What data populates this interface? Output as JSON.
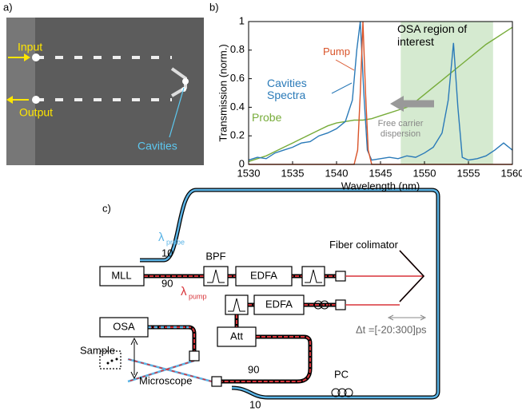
{
  "panel_labels": [
    "a)",
    "b)",
    "c)"
  ],
  "image_panel": {
    "labels": {
      "input": "Input",
      "output": "Output",
      "cavities": "Cavities"
    }
  },
  "chart_data": {
    "type": "line",
    "xlabel": "Wavelength (nm)",
    "ylabel": "Transmission (norm.)",
    "xlim": [
      1530,
      1560
    ],
    "xticks": [
      1530,
      1535,
      1540,
      1545,
      1550,
      1555,
      1560
    ],
    "ylim": [
      0,
      1
    ],
    "yticks": [
      0,
      0.2,
      0.4,
      0.6,
      0.8,
      1
    ],
    "shaded_region": {
      "range": [
        1547.3,
        1557.8
      ],
      "color": "#d5ead0"
    },
    "annotations": [
      "OSA region of interest",
      "Free carrier dispersion"
    ],
    "series": [
      {
        "name": "Probe",
        "color": "#77ac3a",
        "x": [
          1530,
          1531,
          1532,
          1533,
          1534,
          1535,
          1536,
          1537,
          1538,
          1539,
          1540,
          1541,
          1542,
          1543,
          1544,
          1545,
          1546,
          1547,
          1548,
          1549,
          1550,
          1551,
          1552,
          1553,
          1554,
          1555,
          1556,
          1557,
          1558,
          1559,
          1560
        ],
        "values": [
          0.02,
          0.04,
          0.06,
          0.09,
          0.12,
          0.15,
          0.18,
          0.21,
          0.24,
          0.27,
          0.29,
          0.3,
          0.31,
          0.31,
          0.32,
          0.34,
          0.36,
          0.38,
          0.4,
          0.44,
          0.49,
          0.54,
          0.59,
          0.64,
          0.69,
          0.74,
          0.79,
          0.84,
          0.88,
          0.92,
          0.96
        ]
      },
      {
        "name": "Cavities Spectra",
        "color": "#2a7ab8",
        "x": [
          1530,
          1531,
          1532,
          1533,
          1534,
          1535,
          1536,
          1537,
          1538,
          1539,
          1540,
          1541,
          1541.8,
          1542.3,
          1542.7,
          1543.1,
          1543.5,
          1544,
          1545,
          1546,
          1547,
          1548,
          1549,
          1550,
          1551,
          1552,
          1552.7,
          1553.3,
          1553.8,
          1554.3,
          1555,
          1556,
          1557,
          1558,
          1559,
          1560
        ],
        "values": [
          0.03,
          0.05,
          0.04,
          0.08,
          0.1,
          0.12,
          0.15,
          0.16,
          0.2,
          0.22,
          0.25,
          0.3,
          0.45,
          0.8,
          1,
          0.5,
          0.1,
          0.03,
          0.04,
          0.05,
          0.04,
          0.06,
          0.05,
          0.08,
          0.12,
          0.22,
          0.45,
          0.85,
          0.4,
          0.05,
          0.03,
          0.04,
          0.06,
          0.1,
          0.15,
          0.1
        ]
      },
      {
        "name": "Pump",
        "color": "#d9542a",
        "x": [
          1530,
          1542,
          1542.4,
          1542.7,
          1543,
          1543.3,
          1543.6,
          1544,
          1560
        ],
        "values": [
          0,
          0,
          0.1,
          0.5,
          1,
          0.5,
          0.1,
          0,
          0
        ]
      }
    ]
  },
  "diagram": {
    "components": {
      "mll": "MLL",
      "bpf": "BPF",
      "edfa1": "EDFA",
      "edfa2": "EDFA",
      "osa": "OSA",
      "att": "Att"
    },
    "labels": {
      "collimator": "Fiber colimator",
      "sample": "Sample",
      "microscope": "Microscope",
      "pc": "PC",
      "delay": "Δt =[-20:300]ps",
      "top_10": "10",
      "top_90": "90",
      "bottom_90": "90",
      "bottom_10": "10"
    },
    "probe": {
      "symbol": "λ",
      "sub": "probe"
    },
    "pump": {
      "symbol": "λ",
      "sub": "pump"
    }
  }
}
